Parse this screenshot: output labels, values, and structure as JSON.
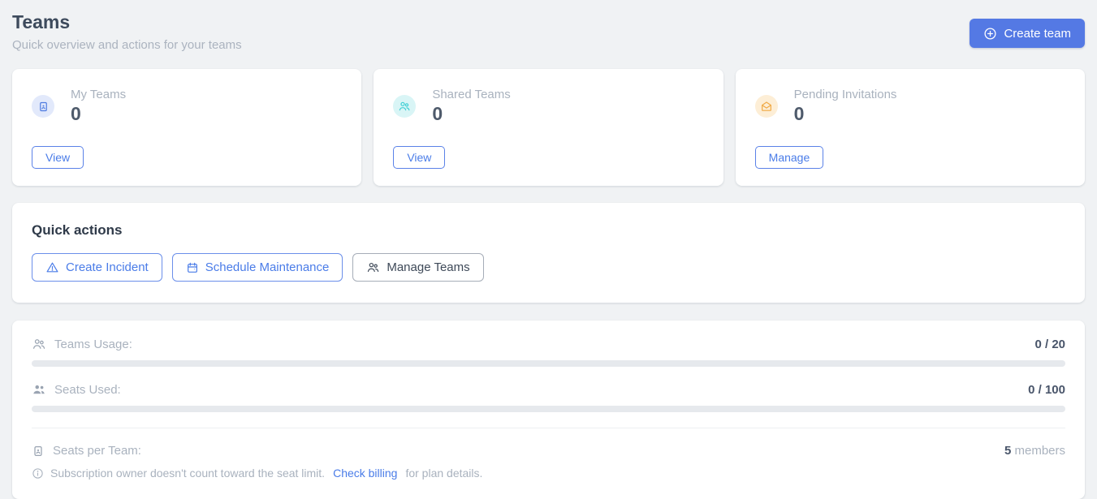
{
  "header": {
    "title": "Teams",
    "subtitle": "Quick overview and actions for your teams",
    "create_button_label": "Create team"
  },
  "stats": {
    "cards": [
      {
        "label": "My Teams",
        "value": "0",
        "action_label": "View",
        "icon": "contact-badge-icon",
        "icon_color": "#4e7be0",
        "icon_bg": "#e2e9fb"
      },
      {
        "label": "Shared Teams",
        "value": "0",
        "action_label": "View",
        "icon": "people-group-icon",
        "icon_color": "#3ecfd4",
        "icon_bg": "#d9f5f6"
      },
      {
        "label": "Pending Invitations",
        "value": "0",
        "action_label": "Manage",
        "icon": "open-envelope-icon",
        "icon_color": "#f0a944",
        "icon_bg": "#fdeed6"
      }
    ]
  },
  "quick_actions": {
    "title": "Quick actions",
    "buttons": [
      {
        "label": "Create Incident",
        "icon": "warning-triangle-icon",
        "style": "blue"
      },
      {
        "label": "Schedule Maintenance",
        "icon": "calendar-icon",
        "style": "blue"
      },
      {
        "label": "Manage Teams",
        "icon": "people-group-icon",
        "style": "neutral"
      }
    ]
  },
  "usage": {
    "rows": [
      {
        "label": "Teams Usage:",
        "value_display": "0 / 20",
        "used": 0,
        "limit": 20,
        "progress_percent": 0,
        "icon": "people-group-icon"
      },
      {
        "label": "Seats Used:",
        "value_display": "0 / 100",
        "used": 0,
        "limit": 100,
        "progress_percent": 0,
        "icon": "people-filled-icon"
      }
    ],
    "seats_per_team": {
      "label": "Seats per Team:",
      "value": "5",
      "suffix": " members",
      "icon": "contact-badge-icon"
    },
    "note": {
      "text_before": "Subscription owner doesn't count toward the seat limit.",
      "link_label": "Check billing",
      "text_after": "for plan details."
    }
  },
  "colors": {
    "page_background": "#f0f2f4",
    "primary_blue": "#5479e4",
    "link_blue": "#4a7ce8",
    "teal_accent": "#3ecfd4",
    "amber_accent": "#f0a944",
    "progress_track": "#e6e9ed",
    "muted_text": "#a9b2be",
    "dark_text": "#3d4a5c"
  }
}
